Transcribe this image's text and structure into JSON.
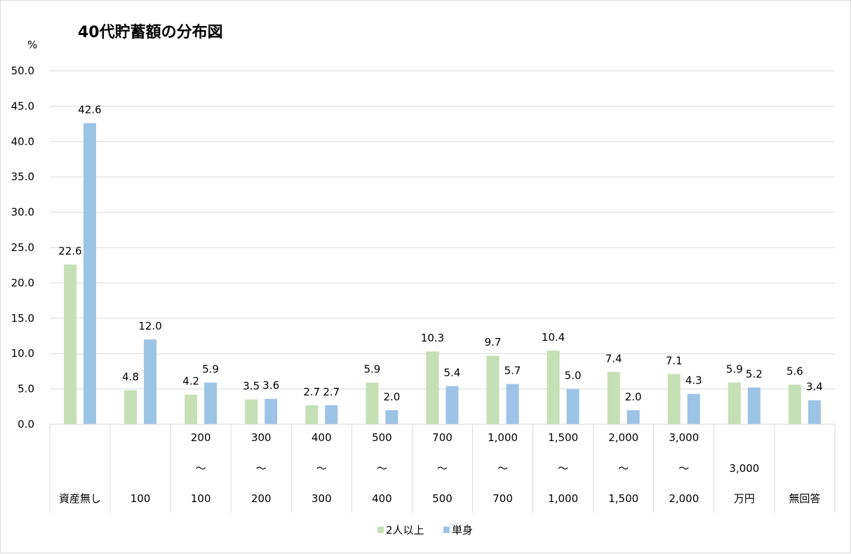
{
  "chart_data": {
    "type": "bar",
    "title": "40代貯蓄額の分布図",
    "ylabel": "%",
    "xlabel": "",
    "ylim": [
      0,
      50
    ],
    "yticks": [
      "0.0",
      "5.0",
      "10.0",
      "15.0",
      "20.0",
      "25.0",
      "30.0",
      "35.0",
      "40.0",
      "45.0",
      "50.0"
    ],
    "grid": true,
    "legend_position": "bottom",
    "categories": [
      [
        "",
        "",
        "資産無し"
      ],
      [
        "",
        "",
        "100"
      ],
      [
        "200",
        "～",
        "100"
      ],
      [
        "300",
        "～",
        "200"
      ],
      [
        "400",
        "～",
        "300"
      ],
      [
        "500",
        "～",
        "400"
      ],
      [
        "700",
        "～",
        "500"
      ],
      [
        "1,000",
        "～",
        "700"
      ],
      [
        "1,500",
        "～",
        "1,000"
      ],
      [
        "2,000",
        "～",
        "1,500"
      ],
      [
        "3,000",
        "～",
        "2,000"
      ],
      [
        "",
        "3,000",
        "万円"
      ],
      [
        "",
        "",
        "無回答"
      ]
    ],
    "series": [
      {
        "name": "2人以上",
        "color": "#C5E0B4",
        "values": [
          22.6,
          4.8,
          4.2,
          3.5,
          2.7,
          5.9,
          10.3,
          9.7,
          10.4,
          7.4,
          7.1,
          5.9,
          5.6
        ]
      },
      {
        "name": "単身",
        "color": "#9DC3E6",
        "values": [
          42.6,
          12.0,
          5.9,
          3.6,
          2.7,
          2.0,
          5.4,
          5.7,
          5.0,
          2.0,
          4.3,
          5.2,
          3.4
        ]
      }
    ]
  }
}
